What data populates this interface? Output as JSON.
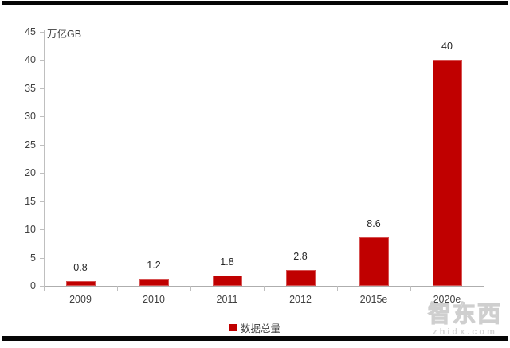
{
  "chart_data": {
    "type": "bar",
    "title": "",
    "unit_label": "万亿GB",
    "categories": [
      "2009",
      "2010",
      "2011",
      "2012",
      "2015e",
      "2020e"
    ],
    "values": [
      0.8,
      1.2,
      1.8,
      2.8,
      8.6,
      40
    ],
    "value_labels": [
      "0.8",
      "1.2",
      "1.8",
      "2.8",
      "8.6",
      "40"
    ],
    "series_name": "数据总量",
    "ylim": [
      0,
      45
    ],
    "yticks": [
      0,
      5,
      10,
      15,
      20,
      25,
      30,
      35,
      40,
      45
    ],
    "grid": false,
    "legend_position": "bottom-center",
    "bar_color": "#c00000"
  },
  "legend": {
    "label": "数据总量",
    "swatch_color": "#c00000"
  },
  "watermark": {
    "name": "智东西",
    "domain": "zhidx.com"
  },
  "colors": {
    "bar": "#c00000",
    "axis_line": "#bfbfbf",
    "baseline": "#aeaeae",
    "text": "#404040",
    "rule": "#060606",
    "watermark": "#d4d4d4"
  }
}
